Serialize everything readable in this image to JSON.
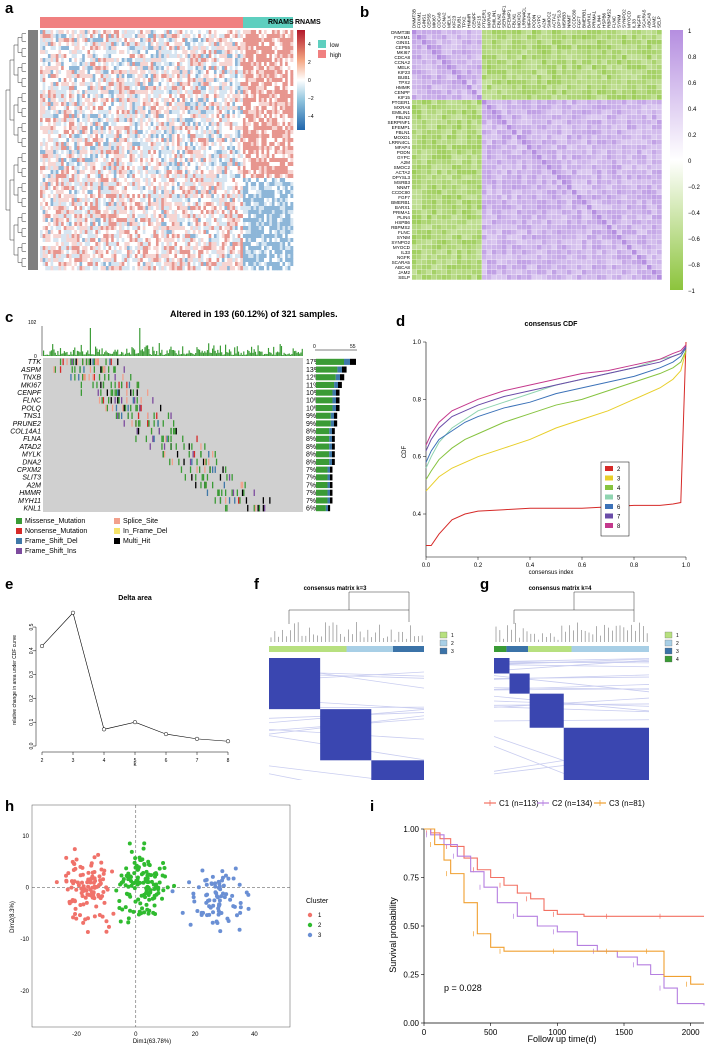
{
  "panels": {
    "a": {
      "label": "a",
      "legend_title": "RNAMS",
      "colorbar_ticks": [
        "4",
        "2",
        "0",
        "−2",
        "−4"
      ],
      "groups": [
        "low",
        "high"
      ],
      "colors": {
        "high": "#f08080",
        "low": "#5ecfbf",
        "pos": "#c8312a",
        "neg": "#3a7fb8"
      }
    },
    "b": {
      "label": "b",
      "genes": [
        "DNMT3B",
        "FOXM1",
        "GINS1",
        "CEP55",
        "MKI67",
        "CDCA8",
        "CCNA2",
        "MELK",
        "KIF23",
        "BUB1",
        "TPX2",
        "HMMR",
        "CENPF",
        "KIF15",
        "PTGER1",
        "MXRA8",
        "EMILIN1",
        "FBLN2",
        "SERPINF1",
        "EFEMP1",
        "FBLN1",
        "MOXD1",
        "LRRN4CL",
        "MFAP4",
        "PODN",
        "GYPC",
        "A2M",
        "SMOC2",
        "ACTA2",
        "DPYSL3",
        "MSRB3",
        "NNMT",
        "CCDC80",
        "FGF7",
        "BMERB1",
        "BARX1",
        "PRIMA1",
        "PLIN4",
        "HSPB6",
        "RBPMS2",
        "FLNC",
        "SYNM",
        "SYNPO2",
        "MYOCD",
        "IL33",
        "NGFR",
        "SCARA5",
        "ABCA8",
        "JAM2",
        "SELP"
      ],
      "colorbar_ticks": [
        "1",
        "0.8",
        "0.6",
        "0.4",
        "0.2",
        "0",
        "−0.2",
        "−0.4",
        "−0.6",
        "−0.8",
        "−1"
      ]
    },
    "c": {
      "label": "c",
      "title": "Altered in 193 (60.12%) of 321 samples.",
      "top_axis": [
        "102",
        "0"
      ],
      "side_axis": [
        "0",
        "55"
      ],
      "genes": [
        {
          "name": "TTK",
          "pct": "17%"
        },
        {
          "name": "ASPM",
          "pct": "13%"
        },
        {
          "name": "TNXB",
          "pct": "12%"
        },
        {
          "name": "MKI67",
          "pct": "11%"
        },
        {
          "name": "CENPF",
          "pct": "10%"
        },
        {
          "name": "FLNC",
          "pct": "10%"
        },
        {
          "name": "POLQ",
          "pct": "10%"
        },
        {
          "name": "TNS1",
          "pct": "9%"
        },
        {
          "name": "PRUNE2",
          "pct": "9%"
        },
        {
          "name": "COL14A1",
          "pct": "8%"
        },
        {
          "name": "FLNA",
          "pct": "8%"
        },
        {
          "name": "ATAD2",
          "pct": "8%"
        },
        {
          "name": "MYLK",
          "pct": "8%"
        },
        {
          "name": "DNA2",
          "pct": "8%"
        },
        {
          "name": "CPXM2",
          "pct": "7%"
        },
        {
          "name": "SLIT3",
          "pct": "7%"
        },
        {
          "name": "A2M",
          "pct": "7%"
        },
        {
          "name": "HMMR",
          "pct": "7%"
        },
        {
          "name": "MYH11",
          "pct": "7%"
        },
        {
          "name": "KNL1",
          "pct": "6%"
        }
      ],
      "legend": [
        {
          "label": "Missense_Mutation",
          "color": "#3a9b35"
        },
        {
          "label": "Splice_Site",
          "color": "#f2a08c"
        },
        {
          "label": "Nonsense_Mutation",
          "color": "#d62a28"
        },
        {
          "label": "In_Frame_Del",
          "color": "#f5e36a"
        },
        {
          "label": "Frame_Shift_Del",
          "color": "#3f78a8"
        },
        {
          "label": "Multi_Hit",
          "color": "#000000"
        },
        {
          "label": "Frame_Shift_Ins",
          "color": "#7d4b9e"
        }
      ]
    },
    "d": {
      "label": "d",
      "chart_data": {
        "type": "line",
        "title": "consensus CDF",
        "xlabel": "consensus index",
        "ylabel": "CDF",
        "xlim": [
          0,
          1
        ],
        "ylim": [
          0.25,
          1.0
        ],
        "xticks": [
          "0.0",
          "0.2",
          "0.4",
          "0.6",
          "0.8",
          "1.0"
        ],
        "yticks": [
          "0.4",
          "0.6",
          "0.8",
          "1.0"
        ],
        "x": [
          0.0,
          0.02,
          0.05,
          0.1,
          0.15,
          0.2,
          0.3,
          0.4,
          0.5,
          0.6,
          0.7,
          0.8,
          0.9,
          0.95,
          0.98,
          1.0
        ],
        "series": [
          {
            "name": "2",
            "color": "#d62a28",
            "values": [
              0.29,
              0.29,
              0.33,
              0.38,
              0.4,
              0.41,
              0.415,
              0.42,
              0.42,
              0.42,
              0.425,
              0.43,
              0.43,
              0.435,
              0.44,
              1.0
            ]
          },
          {
            "name": "3",
            "color": "#e8cf2a",
            "values": [
              0.48,
              0.5,
              0.53,
              0.56,
              0.58,
              0.6,
              0.63,
              0.66,
              0.7,
              0.73,
              0.76,
              0.8,
              0.84,
              0.87,
              0.9,
              0.97
            ]
          },
          {
            "name": "4",
            "color": "#86c33f",
            "values": [
              0.52,
              0.55,
              0.59,
              0.63,
              0.66,
              0.68,
              0.72,
              0.75,
              0.78,
              0.8,
              0.83,
              0.86,
              0.89,
              0.91,
              0.93,
              0.97
            ]
          },
          {
            "name": "5",
            "color": "#8fd4b0",
            "values": [
              0.56,
              0.6,
              0.65,
              0.7,
              0.73,
              0.76,
              0.79,
              0.82,
              0.85,
              0.87,
              0.89,
              0.91,
              0.94,
              0.95,
              0.96,
              0.98
            ]
          },
          {
            "name": "6",
            "color": "#3c72b8",
            "values": [
              0.58,
              0.62,
              0.66,
              0.69,
              0.72,
              0.74,
              0.77,
              0.79,
              0.82,
              0.84,
              0.86,
              0.88,
              0.91,
              0.93,
              0.95,
              0.98
            ]
          },
          {
            "name": "7",
            "color": "#6a4ca8",
            "values": [
              0.62,
              0.66,
              0.7,
              0.74,
              0.76,
              0.78,
              0.81,
              0.83,
              0.85,
              0.87,
              0.89,
              0.91,
              0.93,
              0.95,
              0.96,
              0.985
            ]
          },
          {
            "name": "8",
            "color": "#c4388c",
            "values": [
              0.64,
              0.68,
              0.72,
              0.76,
              0.78,
              0.8,
              0.83,
              0.85,
              0.87,
              0.89,
              0.9,
              0.92,
              0.94,
              0.96,
              0.97,
              0.99
            ]
          }
        ]
      }
    },
    "e": {
      "label": "e",
      "chart_data": {
        "type": "line",
        "title": "Delta area",
        "xlabel": "k",
        "ylabel": "relative change in area under CDF curve",
        "x": [
          2,
          3,
          4,
          5,
          6,
          7,
          8
        ],
        "values": [
          0.42,
          0.56,
          0.07,
          0.1,
          0.05,
          0.03,
          0.02
        ],
        "xlim": [
          2,
          8
        ],
        "ylim": [
          0,
          0.58
        ],
        "yticks": [
          "0.0",
          "0.1",
          "0.2",
          "0.3",
          "0.4",
          "0.5"
        ]
      }
    },
    "f": {
      "label": "f",
      "title": "consensus matrix k=3",
      "legend": [
        {
          "label": "1",
          "color": "#b7e07f"
        },
        {
          "label": "2",
          "color": "#a8cfe6"
        },
        {
          "label": "3",
          "color": "#3b73a8"
        }
      ]
    },
    "g": {
      "label": "g",
      "title": "consensus matrix k=4",
      "legend": [
        {
          "label": "1",
          "color": "#b7e07f"
        },
        {
          "label": "2",
          "color": "#a8cfe6"
        },
        {
          "label": "3",
          "color": "#3b73a8"
        },
        {
          "label": "4",
          "color": "#3a9b35"
        }
      ]
    },
    "h": {
      "label": "h",
      "chart_data": {
        "type": "scatter",
        "xlabel": "Dim1(63.78%)",
        "ylabel": "Dim2(8.3%)",
        "xlim": [
          -35,
          52
        ],
        "ylim": [
          -27,
          16
        ],
        "xticks": [
          "-20",
          "0",
          "20",
          "40"
        ],
        "yticks": [
          "10",
          "0",
          "-10",
          "-20"
        ],
        "legend_title": "Cluster",
        "series": [
          {
            "name": "1",
            "color": "#f0726a",
            "center": [
              -17,
              0
            ],
            "spread": [
              8,
              5.5
            ],
            "n": 113
          },
          {
            "name": "2",
            "color": "#2fbb2f",
            "center": [
              3,
              1
            ],
            "spread": [
              8,
              5.5
            ],
            "n": 134
          },
          {
            "name": "3",
            "color": "#6a8fd4",
            "center": [
              27,
              -2.5
            ],
            "spread": [
              11,
              5
            ],
            "n": 81
          }
        ]
      }
    },
    "i": {
      "label": "i",
      "chart_data": {
        "type": "line",
        "xlabel": "Follow up time(d)",
        "ylabel": "Survival probability",
        "xlim": [
          0,
          2100
        ],
        "ylim": [
          0,
          1.0
        ],
        "xticks": [
          "0",
          "500",
          "1000",
          "1500",
          "2000"
        ],
        "yticks": [
          "0.00",
          "0.25",
          "0.50",
          "0.75",
          "1.00"
        ],
        "pvalue": "p = 0.028",
        "series": [
          {
            "name": "C1 (n=113)",
            "color": "#f27062",
            "t": [
              0,
              50,
              120,
              200,
              300,
              400,
              500,
              600,
              700,
              800,
              900,
              1000,
              1200,
              1400,
              1600,
              1800,
              2100
            ],
            "s": [
              1.0,
              0.98,
              0.95,
              0.91,
              0.85,
              0.79,
              0.75,
              0.71,
              0.67,
              0.64,
              0.58,
              0.56,
              0.55,
              0.55,
              0.55,
              0.55,
              0.55
            ]
          },
          {
            "name": "C2 (n=134)",
            "color": "#b57fe0",
            "t": [
              0,
              50,
              150,
              250,
              350,
              450,
              550,
              700,
              850,
              1000,
              1150,
              1300,
              1450,
              1600,
              1700,
              1800,
              1900,
              2100
            ],
            "s": [
              1.0,
              0.97,
              0.92,
              0.86,
              0.78,
              0.7,
              0.62,
              0.55,
              0.5,
              0.47,
              0.4,
              0.37,
              0.34,
              0.3,
              0.25,
              0.18,
              0.1,
              0.09
            ]
          },
          {
            "name": "C3 (n=81)",
            "color": "#f0a030",
            "t": [
              0,
              80,
              150,
              200,
              300,
              400,
              500,
              600,
              800,
              1000,
              1200,
              1400,
              1600,
              1700,
              1800,
              2000,
              2100
            ],
            "s": [
              1.0,
              0.92,
              0.84,
              0.77,
              0.62,
              0.46,
              0.39,
              0.37,
              0.37,
              0.37,
              0.37,
              0.37,
              0.37,
              0.37,
              0.24,
              0.2,
              0.2
            ]
          }
        ]
      }
    }
  }
}
